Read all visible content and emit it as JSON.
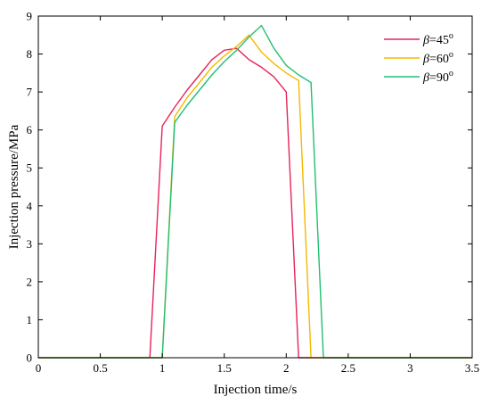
{
  "chart_data": {
    "type": "line",
    "title": "",
    "xlabel": "Injection time/s",
    "ylabel": "Injection pressure/MPa",
    "xlim": [
      0,
      3.5
    ],
    "ylim": [
      0,
      9
    ],
    "xticks": [
      "0",
      "0.5",
      "1",
      "1.5",
      "2",
      "2.5",
      "3",
      "3.5"
    ],
    "yticks": [
      "0",
      "1",
      "2",
      "3",
      "4",
      "5",
      "6",
      "7",
      "8",
      "9"
    ],
    "grid": false,
    "legend_position": "top-right",
    "series": [
      {
        "name": "β=45°",
        "legend_symbol": "β",
        "legend_value": "=45",
        "legend_sup": "o",
        "color": "#e8235a",
        "x": [
          0,
          0.9,
          1.0,
          1.1,
          1.2,
          1.3,
          1.4,
          1.5,
          1.6,
          1.7,
          1.8,
          1.9,
          2.0,
          2.1,
          3.5
        ],
        "y": [
          0,
          0,
          6.1,
          6.6,
          7.05,
          7.45,
          7.85,
          8.1,
          8.15,
          7.85,
          7.65,
          7.4,
          7.0,
          0,
          0
        ]
      },
      {
        "name": "β=60°",
        "legend_symbol": "β",
        "legend_value": "=60",
        "legend_sup": "o",
        "color": "#f5b800",
        "x": [
          0,
          1.0,
          1.1,
          1.2,
          1.3,
          1.4,
          1.5,
          1.6,
          1.7,
          1.8,
          1.9,
          2.0,
          2.1,
          2.2,
          3.5
        ],
        "y": [
          0,
          0,
          6.35,
          6.85,
          7.25,
          7.65,
          7.95,
          8.2,
          8.5,
          8.05,
          7.75,
          7.5,
          7.3,
          0,
          0
        ]
      },
      {
        "name": "β=90°",
        "legend_symbol": "β",
        "legend_value": "=90",
        "legend_sup": "o",
        "color": "#20c070",
        "x": [
          0,
          1.0,
          1.1,
          1.2,
          1.3,
          1.4,
          1.5,
          1.6,
          1.7,
          1.8,
          1.9,
          2.0,
          2.1,
          2.2,
          2.3,
          3.5
        ],
        "y": [
          0,
          0,
          6.2,
          6.65,
          7.05,
          7.45,
          7.8,
          8.1,
          8.45,
          8.75,
          8.15,
          7.7,
          7.45,
          7.25,
          0,
          0
        ]
      }
    ]
  }
}
